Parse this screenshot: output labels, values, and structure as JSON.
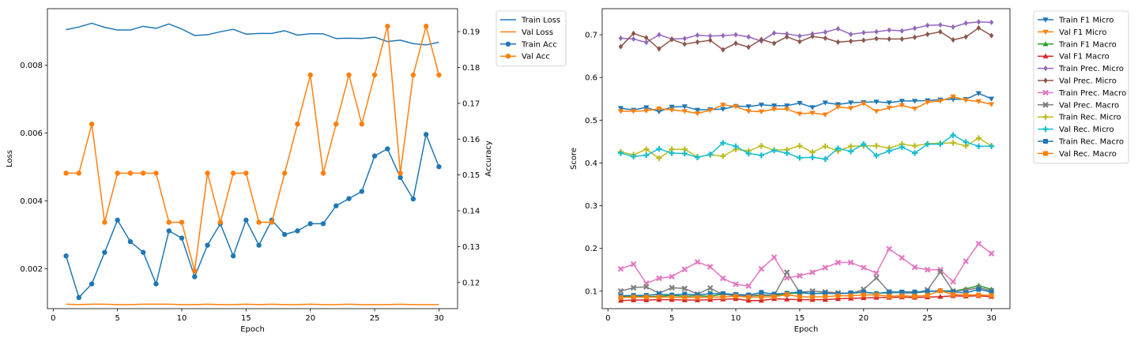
{
  "chart_data": [
    {
      "type": "line",
      "xlabel": "Epoch",
      "ylabel": "Loss",
      "ylabel_right": "Accuracy",
      "xlim": [
        -0.45,
        31.45
      ],
      "ylim": [
        0.00082,
        0.00967
      ],
      "ylim_right": [
        0.1127,
        0.1964
      ],
      "xticks": [
        0,
        5,
        10,
        15,
        20,
        25,
        30
      ],
      "yticks": [
        0.002,
        0.004,
        0.006,
        0.008
      ],
      "yticks_right": [
        0.12,
        0.13,
        0.14,
        0.15,
        0.16,
        0.17,
        0.18,
        0.19
      ],
      "legend_position": "outside-right",
      "x": [
        1,
        2,
        3,
        4,
        5,
        6,
        7,
        8,
        9,
        10,
        11,
        12,
        13,
        14,
        15,
        16,
        17,
        18,
        19,
        20,
        21,
        22,
        23,
        24,
        25,
        26,
        27,
        28,
        29,
        30
      ],
      "series": [
        {
          "name": "Train Loss",
          "axis": "left",
          "marker": "none",
          "color": "#1f77b4",
          "values": [
            0.00905,
            0.00913,
            0.00924,
            0.00912,
            0.00904,
            0.00904,
            0.00915,
            0.00909,
            0.00922,
            0.00907,
            0.00888,
            0.0089,
            0.00899,
            0.00906,
            0.00892,
            0.00894,
            0.00894,
            0.00902,
            0.00889,
            0.00893,
            0.00893,
            0.00879,
            0.0088,
            0.00879,
            0.00883,
            0.0087,
            0.00874,
            0.00864,
            0.0086,
            0.00868
          ]
        },
        {
          "name": "Val Loss",
          "axis": "left",
          "marker": "none",
          "color": "#ff7f0e",
          "values": [
            0.00095,
            0.00094,
            0.00095,
            0.00095,
            0.00094,
            0.00094,
            0.00095,
            0.00095,
            0.00095,
            0.00094,
            0.00094,
            0.00095,
            0.00094,
            0.00094,
            0.00095,
            0.00094,
            0.00095,
            0.00094,
            0.00094,
            0.00095,
            0.00094,
            0.00094,
            0.00095,
            0.00094,
            0.00094,
            0.00094,
            0.00095,
            0.00094,
            0.00094,
            0.00094
          ]
        },
        {
          "name": "Train Acc",
          "axis": "right",
          "marker": "circle",
          "color": "#1f77b4",
          "values": [
            0.1274,
            0.1158,
            0.1196,
            0.1284,
            0.1374,
            0.1314,
            0.1284,
            0.1196,
            0.1344,
            0.1324,
            0.1216,
            0.1304,
            0.1364,
            0.1274,
            0.1374,
            0.1304,
            0.1374,
            0.1334,
            0.1344,
            0.1364,
            0.1364,
            0.1414,
            0.1434,
            0.1454,
            0.1553,
            0.1573,
            0.1493,
            0.1433,
            0.1613,
            0.1523
          ]
        },
        {
          "name": "Val Acc",
          "axis": "right",
          "marker": "circle",
          "color": "#ff7f0e",
          "values": [
            0.1505,
            0.1505,
            0.1642,
            0.1368,
            0.1505,
            0.1505,
            0.1505,
            0.1505,
            0.1368,
            0.1368,
            0.1232,
            0.1505,
            0.1368,
            0.1505,
            0.1505,
            0.1368,
            0.1368,
            0.1505,
            0.1642,
            0.1779,
            0.1505,
            0.1642,
            0.1779,
            0.1642,
            0.1779,
            0.1915,
            0.1505,
            0.1779,
            0.1915,
            0.1779
          ]
        }
      ]
    },
    {
      "type": "line",
      "xlabel": "Epoch",
      "ylabel": "Score",
      "xlim": [
        -0.45,
        31.45
      ],
      "ylim": [
        0.059,
        0.761
      ],
      "xticks": [
        0,
        5,
        10,
        15,
        20,
        25,
        30
      ],
      "yticks": [
        0.1,
        0.2,
        0.3,
        0.4,
        0.5,
        0.6,
        0.7
      ],
      "legend_position": "outside-right",
      "x": [
        1,
        2,
        3,
        4,
        5,
        6,
        7,
        8,
        9,
        10,
        11,
        12,
        13,
        14,
        15,
        16,
        17,
        18,
        19,
        20,
        21,
        22,
        23,
        24,
        25,
        26,
        27,
        28,
        29,
        30
      ],
      "series": [
        {
          "name": "Train F1 Micro",
          "marker": "triangle-down",
          "color": "#1f77b4",
          "values": [
            0.528,
            0.524,
            0.53,
            0.52,
            0.531,
            0.532,
            0.524,
            0.525,
            0.526,
            0.533,
            0.532,
            0.536,
            0.534,
            0.534,
            0.54,
            0.53,
            0.541,
            0.537,
            0.541,
            0.542,
            0.543,
            0.541,
            0.545,
            0.545,
            0.546,
            0.548,
            0.549,
            0.549,
            0.563,
            0.55
          ]
        },
        {
          "name": "Val F1 Micro",
          "marker": "triangle-down",
          "color": "#ff7f0e",
          "values": [
            0.521,
            0.521,
            0.522,
            0.527,
            0.524,
            0.521,
            0.516,
            0.523,
            0.536,
            0.532,
            0.521,
            0.52,
            0.526,
            0.526,
            0.515,
            0.517,
            0.513,
            0.531,
            0.528,
            0.539,
            0.521,
            0.529,
            0.535,
            0.527,
            0.542,
            0.545,
            0.555,
            0.547,
            0.544,
            0.537
          ]
        },
        {
          "name": "Train F1 Macro",
          "marker": "triangle-up",
          "color": "#2ca02c",
          "values": [
            0.087,
            0.088,
            0.087,
            0.088,
            0.09,
            0.088,
            0.089,
            0.088,
            0.093,
            0.089,
            0.089,
            0.09,
            0.09,
            0.094,
            0.096,
            0.094,
            0.096,
            0.094,
            0.095,
            0.097,
            0.095,
            0.096,
            0.097,
            0.096,
            0.099,
            0.101,
            0.1,
            0.105,
            0.113,
            0.104
          ]
        },
        {
          "name": "Val F1 Macro",
          "marker": "triangle-up",
          "color": "#d62728",
          "values": [
            0.078,
            0.079,
            0.079,
            0.08,
            0.08,
            0.079,
            0.079,
            0.08,
            0.081,
            0.082,
            0.078,
            0.078,
            0.082,
            0.081,
            0.08,
            0.08,
            0.08,
            0.082,
            0.083,
            0.084,
            0.085,
            0.085,
            0.086,
            0.085,
            0.086,
            0.087,
            0.089,
            0.088,
            0.089,
            0.087
          ]
        },
        {
          "name": "Train Prec. Micro",
          "marker": "diamond",
          "color": "#9467bd",
          "values": [
            0.692,
            0.69,
            0.682,
            0.7,
            0.69,
            0.691,
            0.699,
            0.697,
            0.698,
            0.7,
            0.695,
            0.685,
            0.704,
            0.702,
            0.697,
            0.702,
            0.706,
            0.714,
            0.701,
            0.705,
            0.707,
            0.711,
            0.709,
            0.715,
            0.722,
            0.723,
            0.718,
            0.727,
            0.73,
            0.729
          ]
        },
        {
          "name": "Val Prec. Micro",
          "marker": "diamond",
          "color": "#8c564b",
          "values": [
            0.672,
            0.703,
            0.693,
            0.667,
            0.689,
            0.678,
            0.683,
            0.687,
            0.665,
            0.68,
            0.671,
            0.689,
            0.68,
            0.695,
            0.684,
            0.696,
            0.692,
            0.683,
            0.685,
            0.687,
            0.691,
            0.69,
            0.69,
            0.694,
            0.701,
            0.707,
            0.688,
            0.695,
            0.716,
            0.698
          ]
        },
        {
          "name": "Train Prec. Macro",
          "marker": "x",
          "color": "#e377c2",
          "values": [
            0.152,
            0.163,
            0.118,
            0.13,
            0.134,
            0.151,
            0.168,
            0.157,
            0.13,
            0.116,
            0.112,
            0.152,
            0.179,
            0.131,
            0.136,
            0.144,
            0.155,
            0.167,
            0.167,
            0.155,
            0.142,
            0.199,
            0.178,
            0.156,
            0.15,
            0.15,
            0.122,
            0.17,
            0.211,
            0.188
          ]
        },
        {
          "name": "Val Prec. Macro",
          "marker": "x",
          "color": "#7f7f7f",
          "values": [
            0.1,
            0.108,
            0.11,
            0.095,
            0.108,
            0.106,
            0.093,
            0.107,
            0.092,
            0.091,
            0.089,
            0.092,
            0.09,
            0.144,
            0.097,
            0.1,
            0.098,
            0.096,
            0.094,
            0.104,
            0.131,
            0.098,
            0.096,
            0.095,
            0.103,
            0.145,
            0.1,
            0.102,
            0.108,
            0.101
          ]
        },
        {
          "name": "Train Rec. Micro",
          "marker": "plus",
          "color": "#bcbd22",
          "values": [
            0.426,
            0.419,
            0.432,
            0.411,
            0.432,
            0.432,
            0.414,
            0.419,
            0.416,
            0.432,
            0.428,
            0.44,
            0.43,
            0.431,
            0.44,
            0.425,
            0.439,
            0.428,
            0.439,
            0.44,
            0.44,
            0.435,
            0.444,
            0.44,
            0.445,
            0.446,
            0.447,
            0.44,
            0.458,
            0.44
          ]
        },
        {
          "name": "Val Rec. Micro",
          "marker": "plus",
          "color": "#17becf",
          "values": [
            0.423,
            0.415,
            0.418,
            0.433,
            0.423,
            0.422,
            0.413,
            0.42,
            0.447,
            0.439,
            0.422,
            0.418,
            0.429,
            0.423,
            0.412,
            0.413,
            0.409,
            0.434,
            0.427,
            0.444,
            0.417,
            0.428,
            0.437,
            0.423,
            0.444,
            0.444,
            0.465,
            0.449,
            0.439,
            0.439
          ]
        },
        {
          "name": "Train Rec. Macro",
          "marker": "square",
          "color": "#1f77b4",
          "values": [
            0.089,
            0.09,
            0.09,
            0.093,
            0.091,
            0.093,
            0.091,
            0.094,
            0.094,
            0.092,
            0.091,
            0.097,
            0.093,
            0.095,
            0.098,
            0.094,
            0.095,
            0.094,
            0.096,
            0.098,
            0.094,
            0.098,
            0.098,
            0.098,
            0.099,
            0.101,
            0.098,
            0.096,
            0.104,
            0.098
          ]
        },
        {
          "name": "Val Rec. Macro",
          "marker": "square",
          "color": "#ff7f0e",
          "values": [
            0.085,
            0.086,
            0.086,
            0.086,
            0.086,
            0.085,
            0.085,
            0.086,
            0.086,
            0.088,
            0.086,
            0.086,
            0.087,
            0.092,
            0.087,
            0.086,
            0.087,
            0.089,
            0.089,
            0.091,
            0.091,
            0.088,
            0.089,
            0.088,
            0.09,
            0.101,
            0.092,
            0.091,
            0.091,
            0.09
          ]
        }
      ]
    }
  ]
}
